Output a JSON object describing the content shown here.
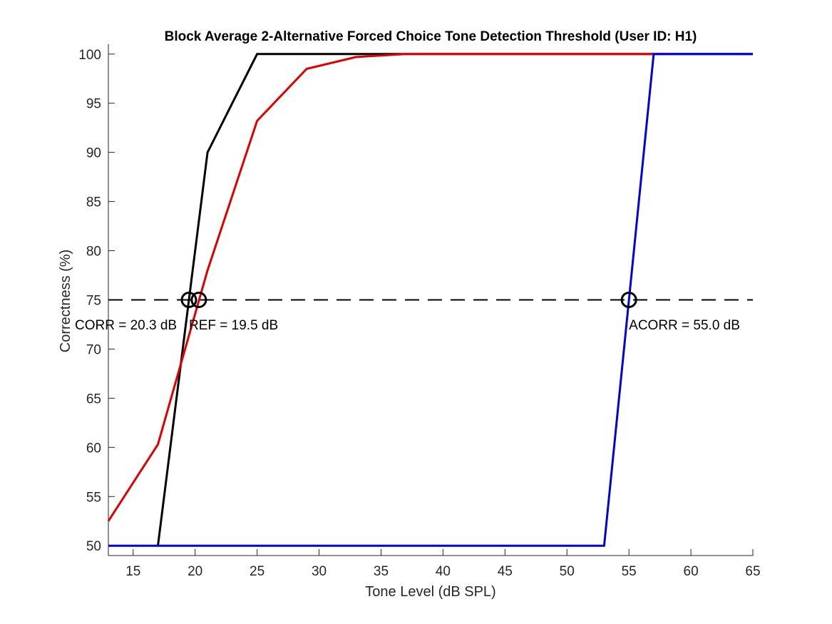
{
  "chart_data": {
    "type": "line",
    "title": "Block Average 2-Alternative Forced Choice Tone Detection Threshold (User ID: H1)",
    "xlabel": "Tone Level (dB SPL)",
    "ylabel": "Correctness (%)",
    "xlim": [
      13,
      65
    ],
    "ylim": [
      49,
      101
    ],
    "xticks": [
      15,
      20,
      25,
      30,
      35,
      40,
      45,
      50,
      55,
      60,
      65
    ],
    "yticks": [
      50,
      55,
      60,
      65,
      70,
      75,
      80,
      85,
      90,
      95,
      100
    ],
    "grid": false,
    "series": [
      {
        "color": "#000000",
        "x": [
          17,
          19,
          21,
          23,
          25,
          27,
          65
        ],
        "y": [
          50,
          70,
          90,
          95,
          100,
          100,
          100
        ]
      },
      {
        "color": "#e00000",
        "x": [
          13,
          17,
          21,
          25,
          29,
          33,
          37,
          41,
          57
        ],
        "y": [
          52.5,
          60.3,
          78,
          93.2,
          98.5,
          99.7,
          100,
          100,
          100
        ]
      },
      {
        "color": "#0000e0",
        "x": [
          13,
          53,
          55,
          57,
          65
        ],
        "y": [
          50,
          50,
          75,
          100,
          100
        ]
      }
    ],
    "reference_line": {
      "y": 75,
      "style": "dashed",
      "color": "#000000"
    },
    "threshold_markers": [
      {
        "x": 19.5,
        "y": 75
      },
      {
        "x": 20.3,
        "y": 75
      },
      {
        "x": 55.0,
        "y": 75
      }
    ],
    "annotations": [
      {
        "text": "CORR = 20.3 dB",
        "x": 13,
        "y": 72.5
      },
      {
        "text": "REF = 19.5 dB",
        "x": 19.5,
        "y": 72.5
      },
      {
        "text": "ACORR = 55.0 dB",
        "x": 55.0,
        "y": 72.5
      }
    ]
  }
}
